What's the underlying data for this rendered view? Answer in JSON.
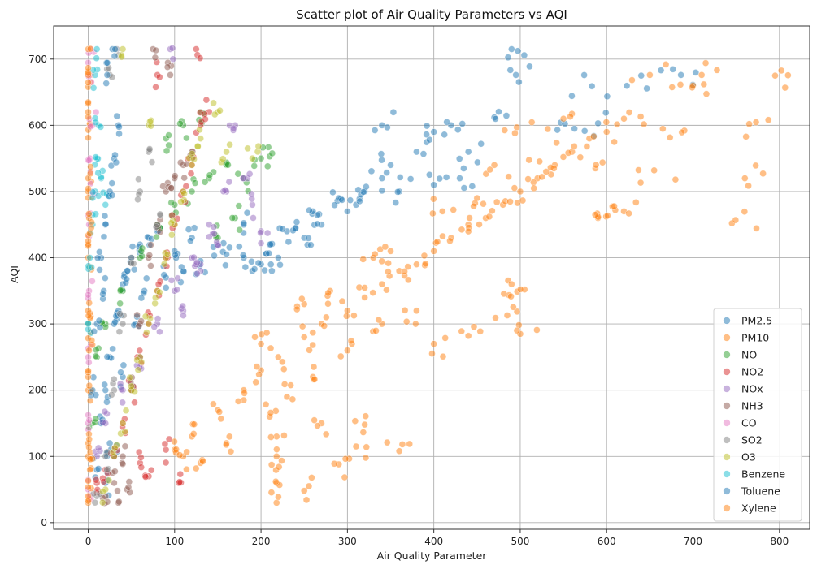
{
  "chart_data": {
    "type": "scatter",
    "title": "Scatter plot of Air Quality Parameters vs AQI",
    "xlabel": "Air Quality Parameter",
    "ylabel": "AQI",
    "xlim": [
      -40,
      835
    ],
    "ylim": [
      -10,
      750
    ],
    "xticks": [
      0,
      100,
      200,
      300,
      400,
      500,
      600,
      700,
      800
    ],
    "yticks": [
      0,
      100,
      200,
      300,
      400,
      500,
      600,
      700
    ],
    "grid": true,
    "legend_position": "lower-right",
    "marker_opacity": 0.5,
    "series": [
      {
        "name": "PM2.5",
        "color": "#1f77b4",
        "points": [
          [
            10,
            80
          ],
          [
            15,
            150
          ],
          [
            20,
            200
          ],
          [
            25,
            250
          ],
          [
            30,
            300
          ],
          [
            35,
            320
          ],
          [
            40,
            360
          ],
          [
            45,
            380
          ],
          [
            50,
            400
          ],
          [
            60,
            420
          ],
          [
            70,
            430
          ],
          [
            80,
            440
          ],
          [
            100,
            410
          ],
          [
            120,
            430
          ],
          [
            150,
            420
          ],
          [
            180,
            400
          ],
          [
            200,
            390
          ],
          [
            220,
            400
          ],
          [
            250,
            430
          ],
          [
            270,
            450
          ],
          [
            300,
            470
          ],
          [
            320,
            500
          ],
          [
            340,
            520
          ],
          [
            350,
            540
          ],
          [
            380,
            560
          ],
          [
            400,
            590
          ],
          [
            420,
            600
          ],
          [
            340,
            600
          ],
          [
            430,
            520
          ],
          [
            180,
            450
          ],
          [
            210,
            420
          ],
          [
            260,
            470
          ],
          [
            290,
            490
          ],
          [
            30,
            100
          ],
          [
            20,
            60
          ],
          [
            25,
            120
          ],
          [
            40,
            220
          ],
          [
            55,
            300
          ],
          [
            65,
            350
          ],
          [
            90,
            370
          ],
          [
            110,
            380
          ],
          [
            130,
            395
          ],
          [
            160,
            405
          ],
          [
            190,
            380
          ],
          [
            240,
            445
          ],
          [
            310,
            480
          ],
          [
            360,
            500
          ],
          [
            400,
            510
          ],
          [
            440,
            560
          ],
          [
            470,
            612
          ],
          [
            490,
            715
          ],
          [
            495,
            676
          ],
          [
            583,
            659
          ],
          [
            590,
            603
          ],
          [
            640,
            675
          ],
          [
            686,
            676
          ],
          [
            543,
            593
          ],
          [
            230,
            440
          ]
        ]
      },
      {
        "name": "PM10",
        "color": "#ff7f0e",
        "points": [
          [
            0,
            30
          ],
          [
            0,
            100
          ],
          [
            0,
            200
          ],
          [
            0,
            300
          ],
          [
            0,
            400
          ],
          [
            0,
            500
          ],
          [
            2,
            600
          ],
          [
            3,
            676
          ],
          [
            100,
            110
          ],
          [
            120,
            130
          ],
          [
            150,
            170
          ],
          [
            180,
            200
          ],
          [
            200,
            230
          ],
          [
            220,
            250
          ],
          [
            250,
            280
          ],
          [
            270,
            300
          ],
          [
            300,
            320
          ],
          [
            320,
            340
          ],
          [
            340,
            360
          ],
          [
            360,
            380
          ],
          [
            380,
            390
          ],
          [
            400,
            410
          ],
          [
            420,
            430
          ],
          [
            440,
            450
          ],
          [
            460,
            460
          ],
          [
            480,
            480
          ],
          [
            500,
            500
          ],
          [
            520,
            520
          ],
          [
            540,
            540
          ],
          [
            560,
            560
          ],
          [
            580,
            580
          ],
          [
            600,
            590
          ],
          [
            620,
            610
          ],
          [
            650,
            676
          ],
          [
            700,
            660
          ],
          [
            710,
            676
          ],
          [
            795,
            675
          ],
          [
            760,
            520
          ],
          [
            765,
            602
          ],
          [
            745,
            452
          ],
          [
            690,
            592
          ],
          [
            620,
            470
          ],
          [
            610,
            472
          ],
          [
            590,
            460
          ],
          [
            500,
            285
          ],
          [
            505,
            352
          ],
          [
            490,
            360
          ],
          [
            360,
            108
          ],
          [
            310,
            115
          ],
          [
            290,
            88
          ],
          [
            270,
            150
          ],
          [
            250,
            48
          ],
          [
            218,
            30
          ],
          [
            218,
            60
          ],
          [
            218,
            100
          ],
          [
            218,
            130
          ],
          [
            320,
            148
          ],
          [
            400,
            270
          ],
          [
            440,
            282
          ],
          [
            380,
            320
          ],
          [
            340,
            300
          ],
          [
            300,
            260
          ],
          [
            260,
            220
          ],
          [
            230,
            190
          ],
          [
            210,
            160
          ],
          [
            160,
            120
          ],
          [
            130,
            90
          ],
          [
            110,
            100
          ],
          [
            200,
            270
          ],
          [
            250,
            330
          ],
          [
            280,
            350
          ],
          [
            330,
            400
          ],
          [
            350,
            410
          ],
          [
            410,
            470
          ],
          [
            450,
            490
          ],
          [
            530,
            530
          ],
          [
            550,
            610
          ],
          [
            470,
            540
          ],
          [
            655,
            532
          ],
          [
            587,
            535
          ],
          [
            496,
            597
          ],
          [
            485,
            313
          ]
        ]
      },
      {
        "name": "NO",
        "color": "#2ca02c",
        "points": [
          [
            5,
            150
          ],
          [
            10,
            250
          ],
          [
            20,
            300
          ],
          [
            40,
            350
          ],
          [
            60,
            400
          ],
          [
            80,
            450
          ],
          [
            100,
            480
          ],
          [
            120,
            500
          ],
          [
            140,
            520
          ],
          [
            160,
            540
          ],
          [
            180,
            520
          ],
          [
            200,
            550
          ],
          [
            210,
            553
          ],
          [
            130,
            620
          ],
          [
            110,
            600
          ],
          [
            90,
            580
          ],
          [
            150,
            430
          ],
          [
            170,
            460
          ]
        ]
      },
      {
        "name": "NO2",
        "color": "#d62728",
        "points": [
          [
            10,
            60
          ],
          [
            20,
            80
          ],
          [
            30,
            100
          ],
          [
            40,
            150
          ],
          [
            50,
            200
          ],
          [
            60,
            250
          ],
          [
            70,
            300
          ],
          [
            80,
            350
          ],
          [
            90,
            400
          ],
          [
            100,
            450
          ],
          [
            110,
            500
          ],
          [
            120,
            540
          ],
          [
            130,
            600
          ],
          [
            140,
            620
          ],
          [
            125,
            715
          ],
          [
            80,
            676
          ],
          [
            60,
            90
          ],
          [
            70,
            70
          ],
          [
            90,
            110
          ],
          [
            105,
            60
          ]
        ]
      },
      {
        "name": "NOx",
        "color": "#9467bd",
        "points": [
          [
            10,
            100
          ],
          [
            20,
            150
          ],
          [
            40,
            200
          ],
          [
            60,
            250
          ],
          [
            80,
            300
          ],
          [
            100,
            350
          ],
          [
            120,
            400
          ],
          [
            140,
            450
          ],
          [
            160,
            500
          ],
          [
            180,
            520
          ],
          [
            170,
            600
          ],
          [
            95,
            715
          ],
          [
            110,
            320
          ],
          [
            130,
            380
          ],
          [
            150,
            420
          ],
          [
            190,
            480
          ],
          [
            200,
            440
          ]
        ]
      },
      {
        "name": "NH3",
        "color": "#8c564b",
        "points": [
          [
            20,
            40
          ],
          [
            30,
            60
          ],
          [
            40,
            100
          ],
          [
            50,
            200
          ],
          [
            60,
            300
          ],
          [
            70,
            400
          ],
          [
            80,
            450
          ],
          [
            90,
            500
          ],
          [
            100,
            520
          ],
          [
            110,
            540
          ],
          [
            120,
            560
          ],
          [
            75,
            715
          ],
          [
            95,
            676
          ],
          [
            35,
            30
          ],
          [
            45,
            50
          ]
        ]
      },
      {
        "name": "CO",
        "color": "#e377c2",
        "points": [
          [
            0,
            50
          ],
          [
            0,
            150
          ],
          [
            0,
            250
          ],
          [
            1,
            350
          ],
          [
            1,
            450
          ],
          [
            2,
            550
          ],
          [
            2,
            676
          ],
          [
            3,
            715
          ],
          [
            5,
            600
          ],
          [
            5,
            500
          ]
        ]
      },
      {
        "name": "SO2",
        "color": "#7f7f7f",
        "points": [
          [
            10,
            40
          ],
          [
            20,
            100
          ],
          [
            30,
            200
          ],
          [
            40,
            300
          ],
          [
            50,
            400
          ],
          [
            60,
            500
          ],
          [
            70,
            560
          ],
          [
            33,
            715
          ],
          [
            25,
            676
          ],
          [
            80,
            450
          ]
        ]
      },
      {
        "name": "O3",
        "color": "#bcbd22",
        "points": [
          [
            20,
            50
          ],
          [
            30,
            100
          ],
          [
            40,
            150
          ],
          [
            50,
            200
          ],
          [
            60,
            250
          ],
          [
            70,
            300
          ],
          [
            80,
            350
          ],
          [
            90,
            400
          ],
          [
            100,
            450
          ],
          [
            110,
            500
          ],
          [
            120,
            540
          ],
          [
            130,
            580
          ],
          [
            150,
            620
          ],
          [
            40,
            715
          ],
          [
            160,
            560
          ],
          [
            190,
            550
          ],
          [
            70,
            600
          ]
        ]
      },
      {
        "name": "Benzene",
        "color": "#17becf",
        "points": [
          [
            0,
            300
          ],
          [
            2,
            400
          ],
          [
            5,
            450
          ],
          [
            8,
            500
          ],
          [
            10,
            550
          ],
          [
            12,
            600
          ],
          [
            8,
            676
          ],
          [
            10,
            715
          ],
          [
            15,
            520
          ],
          [
            20,
            480
          ]
        ]
      },
      {
        "name": "Toluene",
        "color": "#1f77b4",
        "points": [
          [
            5,
            200
          ],
          [
            10,
            300
          ],
          [
            15,
            400
          ],
          [
            20,
            450
          ],
          [
            25,
            500
          ],
          [
            30,
            550
          ],
          [
            35,
            600
          ],
          [
            22,
            676
          ],
          [
            28,
            715
          ],
          [
            18,
            350
          ]
        ]
      },
      {
        "name": "Xylene",
        "color": "#ff7f0e",
        "points": [
          [
            0,
            40
          ],
          [
            0,
            120
          ],
          [
            0,
            220
          ],
          [
            0,
            320
          ],
          [
            0,
            420
          ],
          [
            0,
            520
          ],
          [
            0,
            620
          ],
          [
            0,
            676
          ],
          [
            0,
            715
          ],
          [
            2,
            80
          ],
          [
            1,
            260
          ],
          [
            1,
            460
          ]
        ]
      }
    ]
  }
}
